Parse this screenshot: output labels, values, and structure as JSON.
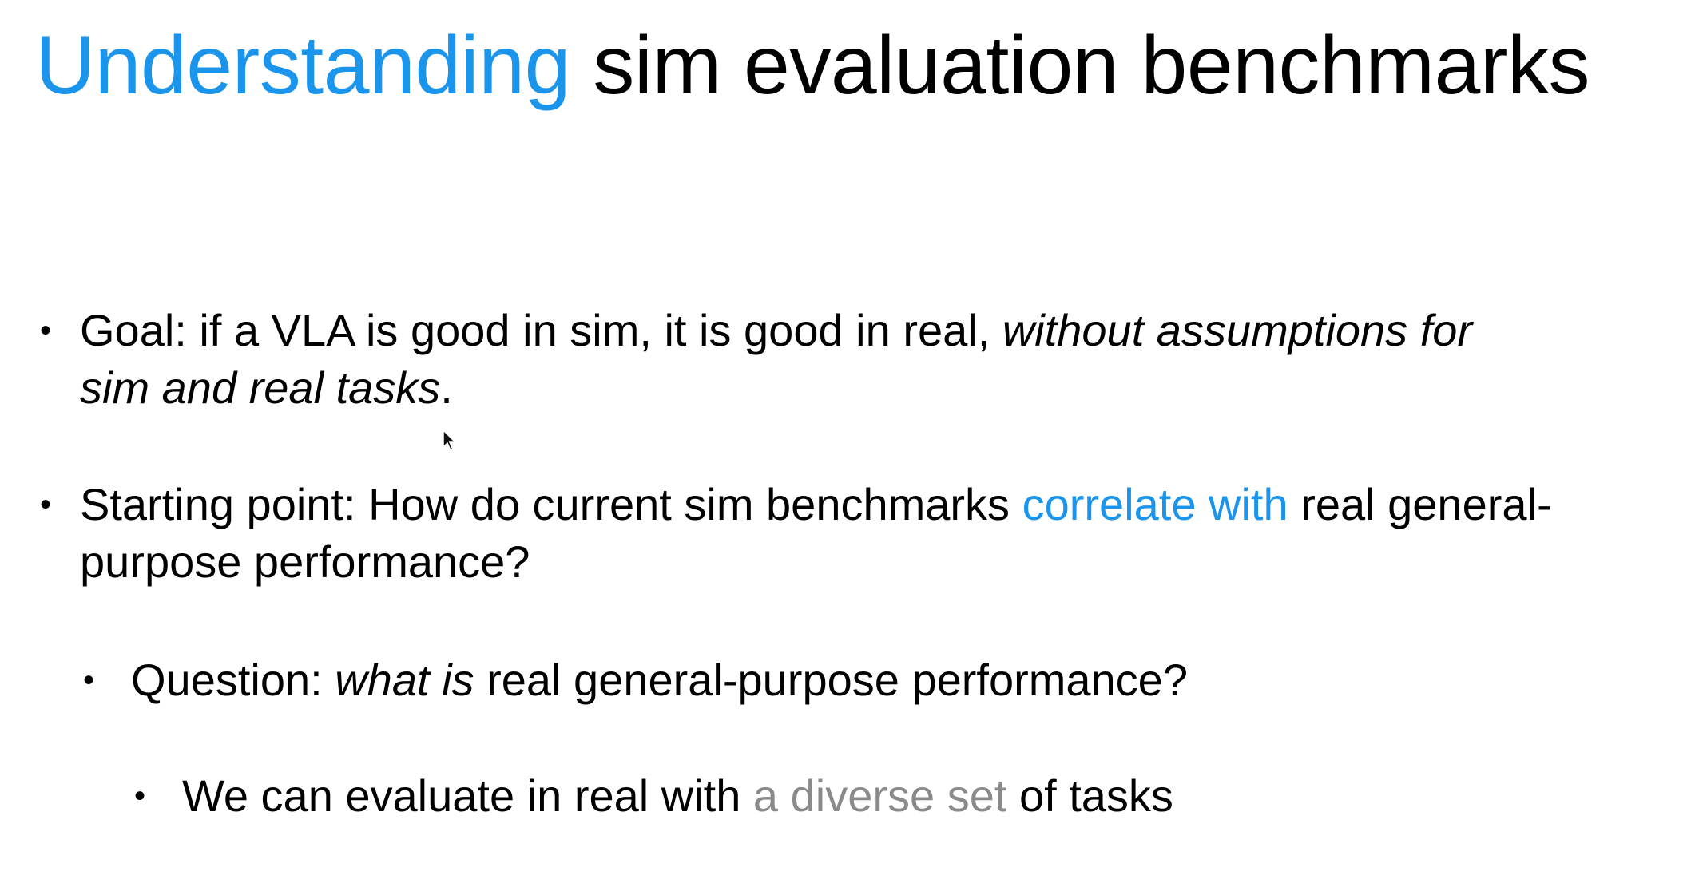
{
  "title": {
    "accent": "Understanding",
    "rest": " sim evaluation benchmarks"
  },
  "bullets": [
    {
      "line1_plain": "Goal: if a VLA is good in sim, it is good in real, ",
      "line1_italic": "without assumptions for",
      "line2_italic": "sim and real tasks",
      "line2_plain": "."
    },
    {
      "line1_plain": "Starting point: How do current sim benchmarks ",
      "line1_highlight": "correlate with",
      "line1_tail": " real general-",
      "line2_plain": "purpose performance?"
    },
    {
      "plain_start": "Question: ",
      "italic": "what is",
      "plain_end": " real general-purpose performance?"
    },
    {
      "plain_start": "We can evaluate in real with ",
      "highlight": "a diverse set",
      "plain_end": " of tasks"
    }
  ],
  "colors": {
    "accent": "#1b95ec",
    "muted": "#8a8a8a"
  }
}
